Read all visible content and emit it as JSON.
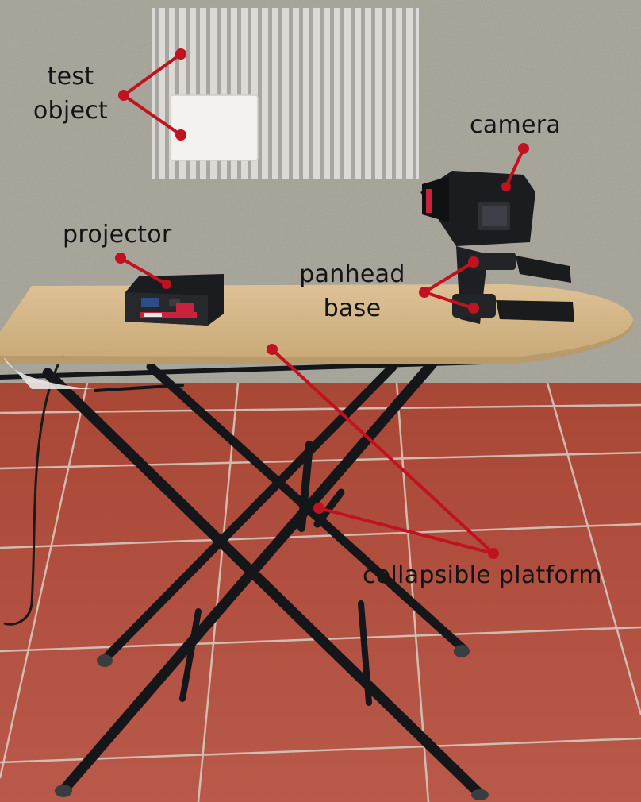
{
  "annotations": {
    "test_object": {
      "line1": "test",
      "line2": "object"
    },
    "camera": "camera",
    "projector": "projector",
    "panhead_base": {
      "line1": "panhead",
      "line2": "base"
    },
    "collapsible_platform": "collapsible platform"
  },
  "colors": {
    "annotation_red": "#c1121f",
    "label_text": "#141414",
    "wall": "#a29f95",
    "floor_tile": "#b2503e",
    "board": "#d6b88a",
    "frame_metal": "#15161a"
  }
}
